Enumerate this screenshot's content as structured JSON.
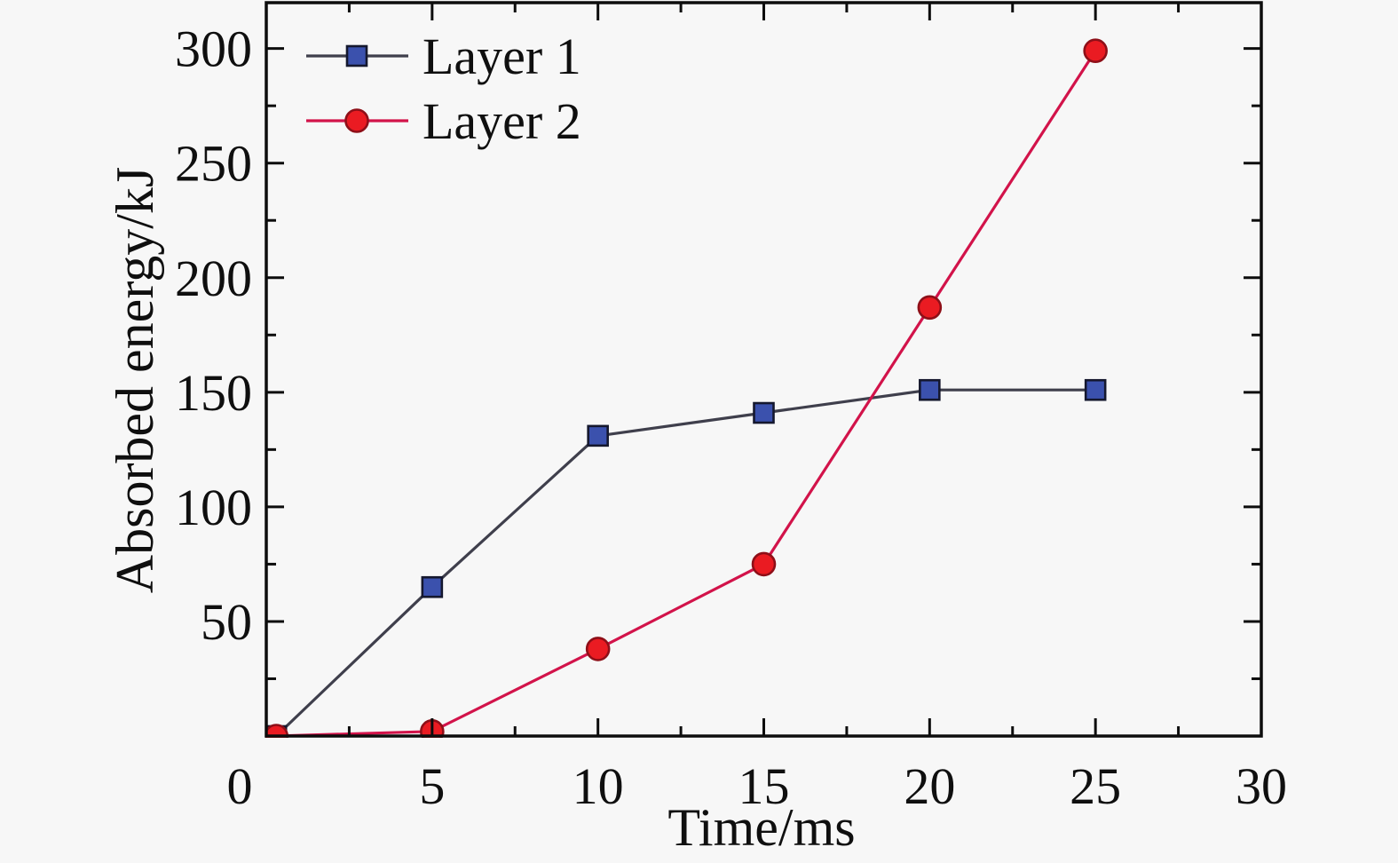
{
  "chart_data": {
    "type": "line",
    "title": "",
    "xlabel": "Time/ms",
    "ylabel": "Absorbed energy/kJ",
    "xlim": [
      0,
      30
    ],
    "ylim": [
      0,
      320
    ],
    "x_major_ticks": [
      0,
      5,
      10,
      15,
      20,
      25,
      30
    ],
    "x_minor_step": 2.5,
    "y_major_ticks": [
      50,
      100,
      150,
      200,
      250,
      300
    ],
    "y_minor_step": 25,
    "grid": false,
    "legend_position": "top-left-inside",
    "series": [
      {
        "name": "Layer 1",
        "marker": "square",
        "line_color": "#3f3f4c",
        "marker_color": "#3b51ad",
        "marker_edge": "#15182e",
        "x": [
          0.3,
          5,
          10,
          15,
          20,
          25
        ],
        "y": [
          0,
          65,
          131,
          141,
          151,
          151
        ]
      },
      {
        "name": "Layer 2",
        "marker": "circle",
        "line_color": "#d2134a",
        "marker_color": "#ea1b22",
        "marker_edge": "#8e0f18",
        "x": [
          0.3,
          5,
          10,
          15,
          20,
          25
        ],
        "y": [
          0,
          2,
          38,
          75,
          187,
          299
        ]
      }
    ],
    "colors": {
      "background": "#f7f7f7",
      "axis": "#0d0d0d",
      "text": "#0f0f0f"
    }
  }
}
